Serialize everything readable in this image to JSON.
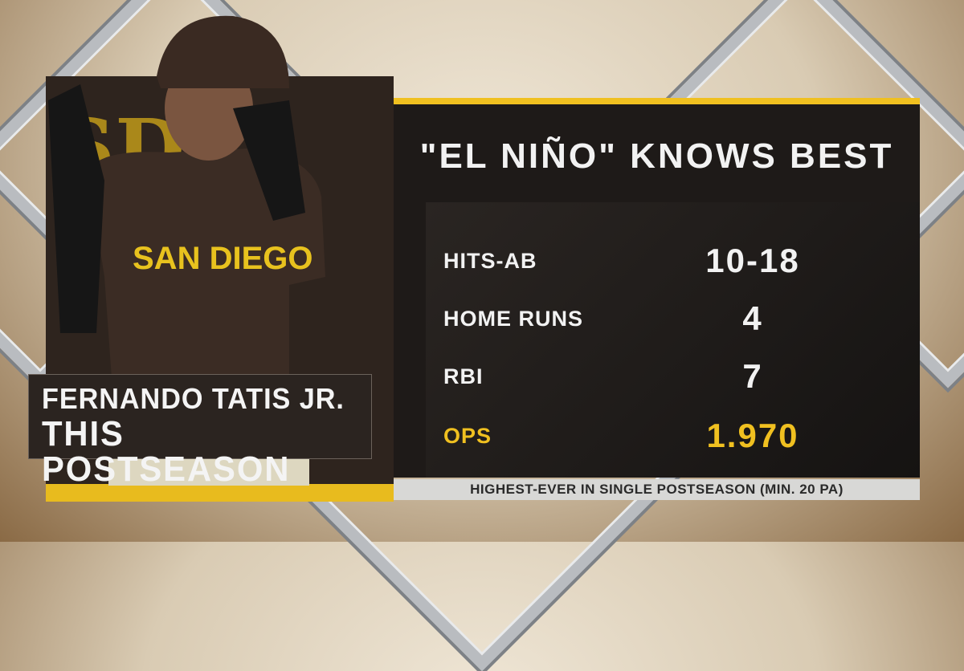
{
  "colors": {
    "accent": "#f0c020",
    "panel": "#1e1a18",
    "brown": "#2e241e"
  },
  "player": {
    "name": "FERNANDO TATIS JR.",
    "subtitle": "THIS POSTSEASON",
    "team_logo": "SD",
    "jersey_text": "SAN DIEGO"
  },
  "graphic": {
    "title": "\"EL NIÑO\" KNOWS BEST",
    "stats": [
      {
        "label": "HITS-AB",
        "value": "10-18"
      },
      {
        "label": "HOME RUNS",
        "value": "4"
      },
      {
        "label": "RBI",
        "value": "7"
      },
      {
        "label": "OPS",
        "value": "1.970",
        "highlight": true
      }
    ],
    "footnote": "HIGHEST-EVER IN SINGLE POSTSEASON (MIN. 20 PA)"
  }
}
